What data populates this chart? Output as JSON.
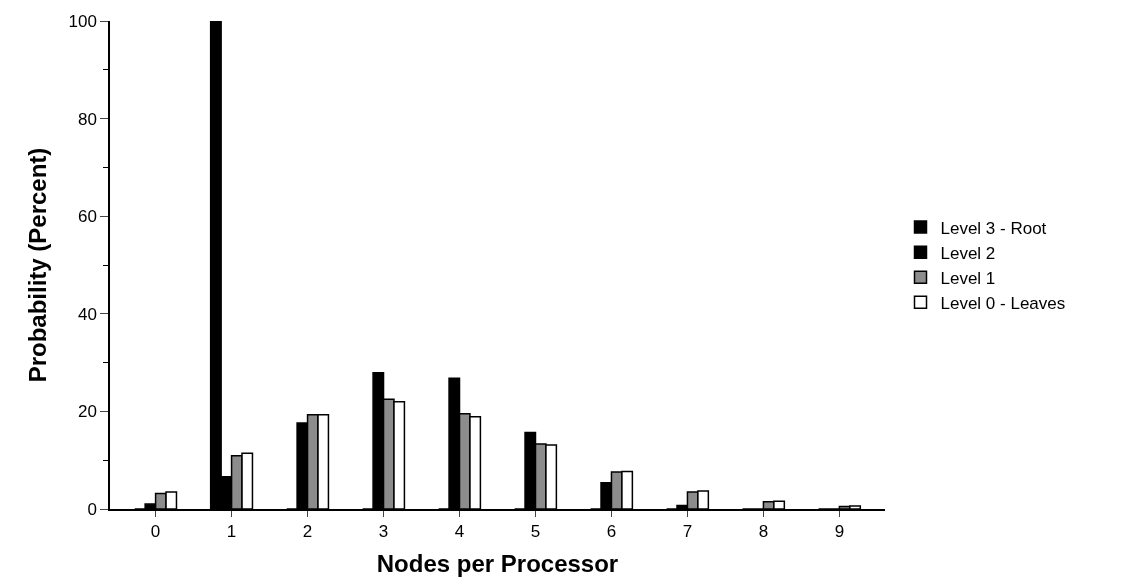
{
  "chart_data": {
    "type": "bar",
    "xlabel": "Nodes per Processor",
    "ylabel": "Probability (Percent)",
    "categories": [
      "0",
      "1",
      "2",
      "3",
      "4",
      "5",
      "6",
      "7",
      "8",
      "9"
    ],
    "series": [
      {
        "name": "Level 3 - Root",
        "color": "#000000",
        "values": [
          0,
          100,
          0,
          0,
          0,
          0,
          0,
          0,
          0,
          0
        ]
      },
      {
        "name": "Level 2",
        "color": "#000000",
        "values": [
          1,
          6.6,
          17.6,
          27.9,
          26.8,
          15.7,
          5.4,
          0.7,
          0,
          0
        ]
      },
      {
        "name": "Level 1",
        "color": "#8c8c8c",
        "values": [
          3.2,
          10.9,
          19.3,
          22.5,
          19.5,
          13.3,
          7.6,
          3.5,
          1.5,
          0.5
        ]
      },
      {
        "name": "Level 0 - Leaves",
        "color": "#ffffff",
        "values": [
          3.5,
          11.4,
          19.3,
          22,
          18.9,
          13.1,
          7.7,
          3.7,
          1.6,
          0.6
        ]
      }
    ],
    "ylim": [
      0,
      100
    ],
    "yticks": [
      0,
      20,
      40,
      60,
      80,
      100
    ],
    "legend": "right"
  }
}
